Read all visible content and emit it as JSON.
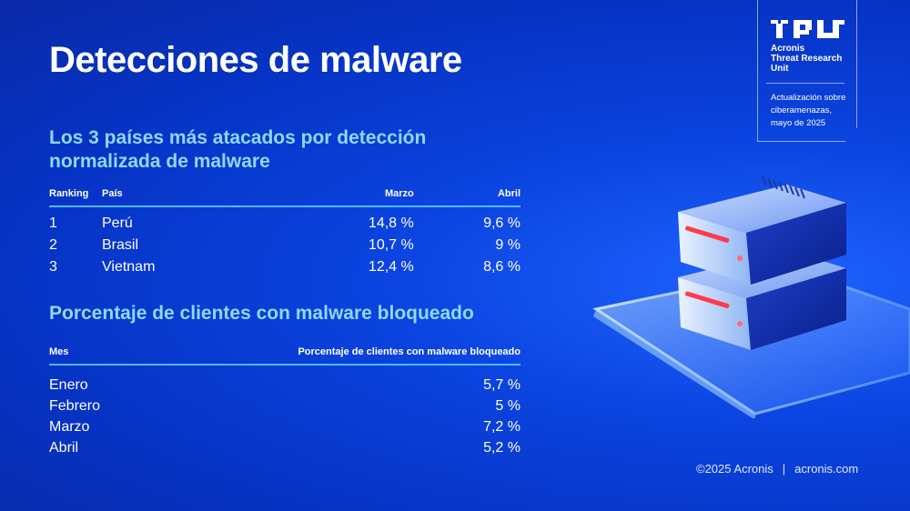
{
  "title": "Detecciones de malware",
  "section1": {
    "heading_line1": "Los 3 países más atacados por detección",
    "heading_line2": "normalizada de malware",
    "columns": [
      "Ranking",
      "País",
      "Marzo",
      "Abril"
    ],
    "rows": [
      {
        "rank": "1",
        "country": "Perú",
        "march": "14,8 %",
        "april": "9,6 %"
      },
      {
        "rank": "2",
        "country": "Brasil",
        "march": "10,7 %",
        "april": "9 %"
      },
      {
        "rank": "3",
        "country": "Vietnam",
        "march": "12,4 %",
        "april": "8,6 %"
      }
    ]
  },
  "section2": {
    "heading": "Porcentaje de clientes con malware bloqueado",
    "columns": [
      "Mes",
      "Porcentaje de clientes con malware bloqueado"
    ],
    "rows": [
      {
        "month": "Enero",
        "value": "5,7 %"
      },
      {
        "month": "Febrero",
        "value": "5 %"
      },
      {
        "month": "Marzo",
        "value": "7,2 %"
      },
      {
        "month": "Abril",
        "value": "5,2 %"
      }
    ]
  },
  "badge": {
    "brand_line1": "Acronis",
    "brand_line2": "Threat Research",
    "brand_line3": "Unit",
    "update_line1": "Actualización sobre",
    "update_line2": "ciberamenazas,",
    "update_line3": "mayo de 2025"
  },
  "footer": {
    "copyright": "©2025 Acronis",
    "separator": "|",
    "site": "acronis.com"
  },
  "colors": {
    "background": "#0b44e0",
    "heading_accent": "#8fd8ff",
    "rule": "#52b8ff",
    "server_led": "#ff3b4a"
  },
  "icons": [
    "tru-logo-icon",
    "server-stack-illustration"
  ]
}
